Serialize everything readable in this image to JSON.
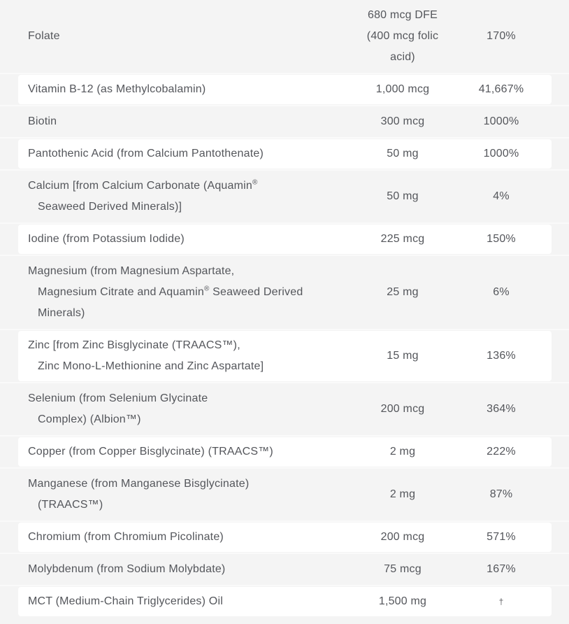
{
  "colors": {
    "panel_background": "#f4f4f4",
    "card_background": "#ffffff",
    "row_divider": "#fafafa",
    "text": "#54565b"
  },
  "table": {
    "rows": [
      {
        "bg": "gray",
        "name": [
          [
            {
              "t": "Folate"
            }
          ]
        ],
        "amount": [
          "680 mcg DFE",
          "(400 mcg folic",
          "acid)"
        ],
        "dv": "170%"
      },
      {
        "bg": "white",
        "name": [
          [
            {
              "t": "Vitamin B-12 (as Methylcobalamin)"
            }
          ]
        ],
        "amount": [
          "1,000 mcg"
        ],
        "dv": "41,667%"
      },
      {
        "bg": "gray",
        "name": [
          [
            {
              "t": "Biotin"
            }
          ]
        ],
        "amount": [
          "300 mcg"
        ],
        "dv": "1000%"
      },
      {
        "bg": "white",
        "name": [
          [
            {
              "t": "Pantothenic Acid (from Calcium Pantothenate)"
            }
          ]
        ],
        "amount": [
          "50 mg"
        ],
        "dv": "1000%"
      },
      {
        "bg": "gray",
        "name": [
          [
            {
              "t": "Calcium [from Calcium Carbonate (Aquamin"
            },
            {
              "s": "®"
            }
          ],
          [
            {
              "t": "Seaweed Derived Minerals)]"
            }
          ]
        ],
        "amount": [
          "50 mg"
        ],
        "dv": "4%"
      },
      {
        "bg": "white",
        "name": [
          [
            {
              "t": "Iodine (from Potassium Iodide)"
            }
          ]
        ],
        "amount": [
          "225 mcg"
        ],
        "dv": "150%"
      },
      {
        "bg": "gray",
        "name": [
          [
            {
              "t": "Magnesium (from Magnesium Aspartate,"
            }
          ],
          [
            {
              "t": "Magnesium Citrate and Aquamin"
            },
            {
              "s": "®"
            },
            {
              "t": " Seaweed Derived"
            }
          ],
          [
            {
              "t": "Minerals)"
            }
          ]
        ],
        "amount": [
          "25 mg"
        ],
        "dv": "6%"
      },
      {
        "bg": "white",
        "name": [
          [
            {
              "t": "Zinc [from Zinc Bisglycinate (TRAACS™),"
            }
          ],
          [
            {
              "t": "Zinc Mono-L-Methionine and Zinc Aspartate]"
            }
          ]
        ],
        "amount": [
          "15 mg"
        ],
        "dv": "136%"
      },
      {
        "bg": "gray",
        "name": [
          [
            {
              "t": "Selenium (from Selenium Glycinate"
            }
          ],
          [
            {
              "t": "Complex) (Albion™)"
            }
          ]
        ],
        "amount": [
          "200 mcg"
        ],
        "dv": "364%"
      },
      {
        "bg": "white",
        "name": [
          [
            {
              "t": "Copper (from Copper Bisglycinate) (TRAACS™)"
            }
          ]
        ],
        "amount": [
          "2 mg"
        ],
        "dv": "222%"
      },
      {
        "bg": "gray",
        "name": [
          [
            {
              "t": "Manganese (from Manganese Bisglycinate)"
            }
          ],
          [
            {
              "t": "(TRAACS™)"
            }
          ]
        ],
        "amount": [
          "2 mg"
        ],
        "dv": "87%"
      },
      {
        "bg": "white",
        "name": [
          [
            {
              "t": "Chromium (from Chromium Picolinate)"
            }
          ]
        ],
        "amount": [
          "200 mcg"
        ],
        "dv": "571%"
      },
      {
        "bg": "gray",
        "name": [
          [
            {
              "t": "Molybdenum (from Sodium Molybdate)"
            }
          ]
        ],
        "amount": [
          "75 mcg"
        ],
        "dv": "167%"
      },
      {
        "bg": "white",
        "name": [
          [
            {
              "t": "MCT (Medium-Chain Triglycerides) Oil"
            }
          ]
        ],
        "amount": [
          "1,500 mg"
        ],
        "dv": "†"
      }
    ]
  }
}
